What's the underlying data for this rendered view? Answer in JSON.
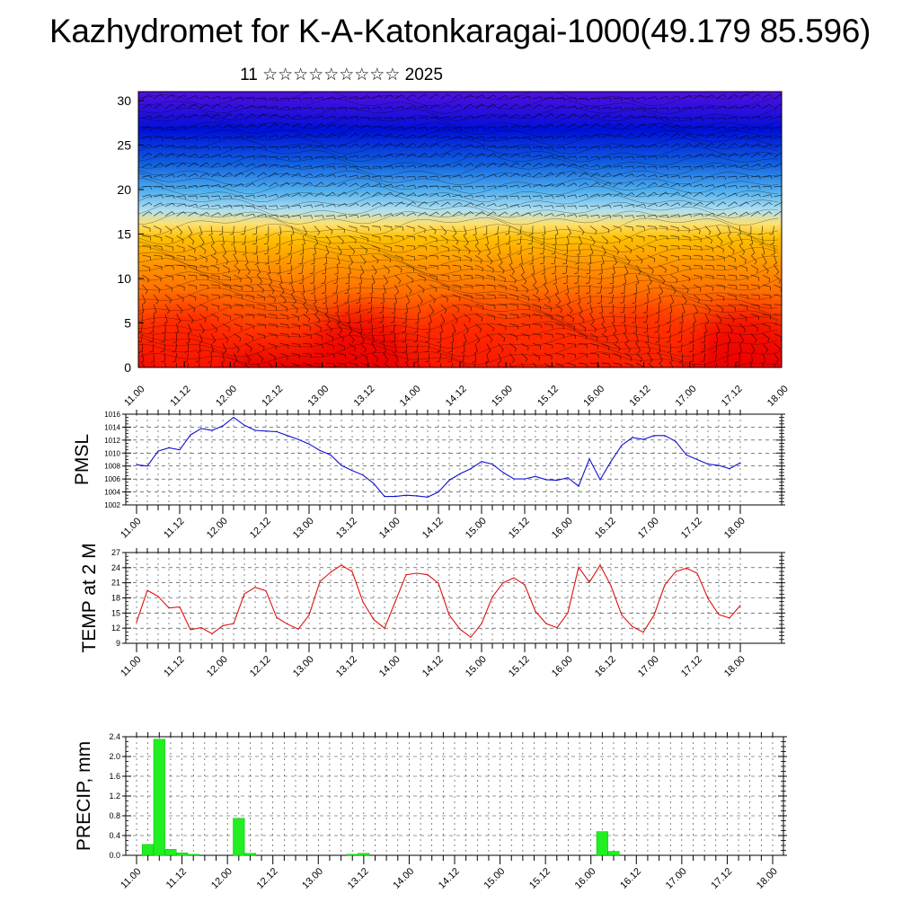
{
  "page": {
    "title": "Kazhydromet for K-A-Katonkaragai-1000(49.179 85.596)",
    "subtitle": "11 ☆☆☆☆☆☆☆☆☆ 2025"
  },
  "colors": {
    "pmsl_line": "#1010d0",
    "temp_line": "#e01010",
    "precip_bar": "#22ee22",
    "precip_bar_edge": "#00bb00",
    "axis": "#000000",
    "grid": "#000000"
  },
  "chart_data": [
    {
      "id": "heatmap",
      "type": "heatmap",
      "description_values": "cross-section colour field with wind barbs",
      "yticks": [
        "0",
        "5",
        "10",
        "15",
        "20",
        "25",
        "30"
      ],
      "ylim": [
        0,
        31
      ],
      "xtick_labels": [
        "11.00",
        "11.12",
        "12.00",
        "12.12",
        "13.00",
        "13.12",
        "14.00",
        "14.12",
        "15.00",
        "15.12",
        "16.00",
        "16.12",
        "17.00",
        "17.12",
        "18.00"
      ],
      "xlim": [
        0,
        168
      ],
      "colormap": [
        "#e80000",
        "#ff3000",
        "#ff7000",
        "#ffa000",
        "#ffc000",
        "#ffe070",
        "#b0e0f0",
        "#50b0ee",
        "#1060e0",
        "#0010d8",
        "#5010e0"
      ]
    },
    {
      "id": "pmsl",
      "type": "line",
      "ylabel": "PMSL",
      "yticks": [
        1002,
        1004,
        1006,
        1008,
        1010,
        1012,
        1014,
        1016
      ],
      "ylim": [
        1002,
        1016
      ],
      "xtick_labels": [
        "11.00",
        "11.12",
        "12.00",
        "12.12",
        "13.00",
        "13.12",
        "14.00",
        "14.12",
        "15.00",
        "15.12",
        "16.00",
        "16.12",
        "17.00",
        "17.12",
        "18.00"
      ],
      "xlim": [
        0,
        168
      ],
      "x": [
        0,
        3,
        6,
        9,
        12,
        15,
        18,
        21,
        24,
        27,
        30,
        33,
        36,
        39,
        42,
        45,
        48,
        51,
        54,
        57,
        60,
        63,
        66,
        69,
        72,
        75,
        78,
        81,
        84,
        87,
        90,
        93,
        96,
        99,
        102,
        105,
        108,
        111,
        114,
        117,
        120,
        123,
        126,
        129,
        132,
        135,
        138,
        141,
        144,
        147,
        150,
        153,
        156,
        159,
        162,
        165,
        168
      ],
      "values": [
        1008.2,
        1008.0,
        1010.3,
        1010.8,
        1010.5,
        1012.8,
        1013.8,
        1013.5,
        1014.2,
        1015.5,
        1014.3,
        1013.5,
        1013.4,
        1013.3,
        1012.7,
        1012.1,
        1011.4,
        1010.4,
        1009.7,
        1008.1,
        1007.3,
        1006.6,
        1005.3,
        1003.3,
        1003.3,
        1003.5,
        1003.4,
        1003.2,
        1004.0,
        1005.8,
        1006.8,
        1007.6,
        1008.7,
        1008.3,
        1007.0,
        1006.0,
        1006.0,
        1006.4,
        1005.9,
        1005.8,
        1006.2,
        1004.9,
        1009.1,
        1005.9,
        1008.7,
        1011.2,
        1012.4,
        1012.1,
        1012.7,
        1012.7,
        1011.8,
        1009.7,
        1009.0,
        1008.3,
        1008.1,
        1007.6,
        1008.5
      ]
    },
    {
      "id": "temp",
      "type": "line",
      "ylabel": "TEMP at 2 M",
      "yticks": [
        9,
        12,
        15,
        18,
        21,
        24,
        27
      ],
      "ylim": [
        9,
        27
      ],
      "xtick_labels": [
        "11.00",
        "11.12",
        "12.00",
        "12.12",
        "13.00",
        "13.12",
        "14.00",
        "14.12",
        "15.00",
        "15.12",
        "16.00",
        "16.12",
        "17.00",
        "17.12",
        "18.00"
      ],
      "xlim": [
        0,
        168
      ],
      "x": [
        0,
        3,
        6,
        9,
        12,
        15,
        18,
        21,
        24,
        27,
        30,
        33,
        36,
        39,
        42,
        45,
        48,
        51,
        54,
        57,
        60,
        63,
        66,
        69,
        72,
        75,
        78,
        81,
        84,
        87,
        90,
        93,
        96,
        99,
        102,
        105,
        108,
        111,
        114,
        117,
        120,
        123,
        126,
        129,
        132,
        135,
        138,
        141,
        144,
        147,
        150,
        153,
        156,
        159,
        162,
        165,
        168
      ],
      "values": [
        13.2,
        19.5,
        18.3,
        16.0,
        16.2,
        11.7,
        12.1,
        10.9,
        12.5,
        12.9,
        18.8,
        20.1,
        19.4,
        14.1,
        12.8,
        11.8,
        14.6,
        21.2,
        23.1,
        24.5,
        23.2,
        17.2,
        13.7,
        12.0,
        17.3,
        22.6,
        22.9,
        22.6,
        20.9,
        14.6,
        11.8,
        10.2,
        12.9,
        18.2,
        21.0,
        22.0,
        20.6,
        15.3,
        12.9,
        12.1,
        15.0,
        24.1,
        21.1,
        24.5,
        20.4,
        14.6,
        12.3,
        11.2,
        14.6,
        20.6,
        23.2,
        23.9,
        22.9,
        17.9,
        14.7,
        14.0,
        16.5
      ]
    },
    {
      "id": "precip",
      "type": "bar",
      "ylabel": "PRECIP, mm",
      "yticks": [
        "0.0",
        "0.4",
        "0.8",
        "1.2",
        "1.6",
        "2.0",
        "2.4"
      ],
      "ylim": [
        0,
        2.4
      ],
      "xtick_labels": [
        "11.00",
        "11.12",
        "12.00",
        "12.12",
        "13.00",
        "13.12",
        "14.00",
        "14.12",
        "15.00",
        "15.12",
        "16.00",
        "16.12",
        "17.00",
        "17.12",
        "18.00"
      ],
      "xlim": [
        0,
        168
      ],
      "x": [
        3,
        6,
        9,
        12,
        15,
        27,
        30,
        57,
        60,
        123,
        126
      ],
      "values": [
        0.22,
        2.35,
        0.12,
        0.05,
        0.02,
        0.75,
        0.04,
        0.02,
        0.04,
        0.48,
        0.08
      ]
    }
  ]
}
